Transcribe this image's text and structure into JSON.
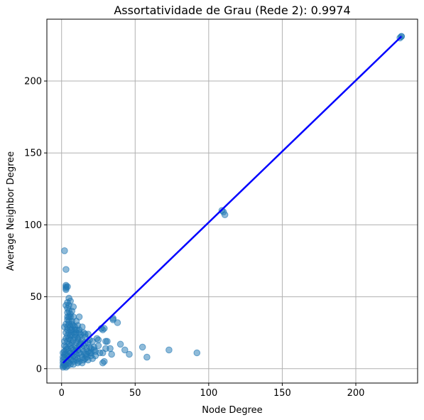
{
  "chart_data": {
    "type": "scatter",
    "title": "Assortatividade de Grau (Rede 2): 0.9974",
    "xlabel": "Node Degree",
    "ylabel": "Average Neighbor Degree",
    "xlim": [
      -10,
      242
    ],
    "ylim": [
      -10,
      243
    ],
    "xticks": [
      0,
      50,
      100,
      150,
      200
    ],
    "yticks": [
      0,
      50,
      100,
      150,
      200
    ],
    "grid": true,
    "colors": {
      "points": "#1f77b4",
      "fit_line": "#0000ff"
    },
    "point_opacity": 0.5,
    "fit_line": {
      "x": [
        1,
        231
      ],
      "y": [
        4,
        231
      ]
    },
    "points": [
      [
        231,
        231
      ],
      [
        231,
        231
      ],
      [
        230,
        230
      ],
      [
        109,
        110
      ],
      [
        110,
        109
      ],
      [
        111,
        107
      ],
      [
        2,
        82
      ],
      [
        3,
        69
      ],
      [
        3,
        58
      ],
      [
        3,
        57
      ],
      [
        4,
        57
      ],
      [
        3,
        56
      ],
      [
        3,
        55
      ],
      [
        5,
        49
      ],
      [
        6,
        47
      ],
      [
        4,
        46
      ],
      [
        3,
        44
      ],
      [
        5,
        44
      ],
      [
        8,
        43
      ],
      [
        4,
        42
      ],
      [
        5,
        40
      ],
      [
        7,
        40
      ],
      [
        4,
        36
      ],
      [
        6,
        36
      ],
      [
        8,
        36
      ],
      [
        12,
        36
      ],
      [
        4,
        34
      ],
      [
        5,
        33
      ],
      [
        7,
        33
      ],
      [
        10,
        33
      ],
      [
        3,
        31
      ],
      [
        5,
        31
      ],
      [
        8,
        30
      ],
      [
        11,
        30
      ],
      [
        2,
        29
      ],
      [
        4,
        29
      ],
      [
        6,
        29
      ],
      [
        9,
        29
      ],
      [
        14,
        29
      ],
      [
        4,
        27
      ],
      [
        6,
        27
      ],
      [
        7,
        27
      ],
      [
        9,
        27
      ],
      [
        12,
        27
      ],
      [
        3,
        25
      ],
      [
        5,
        25
      ],
      [
        8,
        25
      ],
      [
        10,
        25
      ],
      [
        15,
        25
      ],
      [
        16,
        24
      ],
      [
        18,
        24
      ],
      [
        4,
        23
      ],
      [
        6,
        23
      ],
      [
        7,
        23
      ],
      [
        9,
        22
      ],
      [
        12,
        22
      ],
      [
        3,
        21
      ],
      [
        5,
        21
      ],
      [
        6,
        20
      ],
      [
        8,
        20
      ],
      [
        11,
        20
      ],
      [
        14,
        20
      ],
      [
        19,
        20
      ],
      [
        2,
        19
      ],
      [
        4,
        19
      ],
      [
        7,
        18
      ],
      [
        10,
        18
      ],
      [
        13,
        18
      ],
      [
        16,
        18
      ],
      [
        18,
        18
      ],
      [
        21,
        19
      ],
      [
        5,
        17
      ],
      [
        6,
        16
      ],
      [
        9,
        16
      ],
      [
        12,
        16
      ],
      [
        15,
        16
      ],
      [
        3,
        15
      ],
      [
        4,
        14
      ],
      [
        7,
        14
      ],
      [
        8,
        13
      ],
      [
        10,
        14
      ],
      [
        11,
        13
      ],
      [
        14,
        14
      ],
      [
        17,
        14
      ],
      [
        20,
        14
      ],
      [
        22,
        15
      ],
      [
        2,
        12
      ],
      [
        5,
        12
      ],
      [
        6,
        11
      ],
      [
        9,
        12
      ],
      [
        12,
        11
      ],
      [
        15,
        12
      ],
      [
        18,
        12
      ],
      [
        23,
        12
      ],
      [
        3,
        10
      ],
      [
        4,
        9
      ],
      [
        7,
        10
      ],
      [
        8,
        9
      ],
      [
        10,
        10
      ],
      [
        13,
        10
      ],
      [
        16,
        10
      ],
      [
        19,
        11
      ],
      [
        2,
        8
      ],
      [
        5,
        8
      ],
      [
        6,
        7
      ],
      [
        9,
        8
      ],
      [
        11,
        7
      ],
      [
        14,
        8
      ],
      [
        17,
        8
      ],
      [
        20,
        9
      ],
      [
        1,
        6
      ],
      [
        3,
        6
      ],
      [
        4,
        5
      ],
      [
        7,
        6
      ],
      [
        8,
        5
      ],
      [
        10,
        6
      ],
      [
        12,
        5
      ],
      [
        15,
        6
      ],
      [
        18,
        6
      ],
      [
        1,
        4
      ],
      [
        2,
        3
      ],
      [
        3,
        3
      ],
      [
        5,
        4
      ],
      [
        6,
        3
      ],
      [
        8,
        3
      ],
      [
        11,
        4
      ],
      [
        14,
        4
      ],
      [
        1,
        2
      ],
      [
        2,
        2
      ],
      [
        3,
        1
      ],
      [
        1,
        1
      ],
      [
        4,
        2
      ],
      [
        24,
        21
      ],
      [
        25,
        20
      ],
      [
        27,
        28
      ],
      [
        28,
        27
      ],
      [
        29,
        28
      ],
      [
        30,
        19
      ],
      [
        31,
        19
      ],
      [
        33,
        14
      ],
      [
        34,
        10
      ],
      [
        35,
        35
      ],
      [
        35,
        34
      ],
      [
        38,
        32
      ],
      [
        40,
        17
      ],
      [
        43,
        13
      ],
      [
        46,
        10
      ],
      [
        55,
        15
      ],
      [
        58,
        8
      ],
      [
        73,
        13
      ],
      [
        92,
        11
      ],
      [
        25,
        16
      ],
      [
        26,
        11
      ],
      [
        28,
        11
      ],
      [
        29,
        5
      ],
      [
        28,
        4
      ],
      [
        30,
        14
      ],
      [
        22,
        13
      ],
      [
        20,
        11
      ],
      [
        17,
        10
      ],
      [
        16,
        7
      ],
      [
        21,
        7
      ],
      [
        23,
        9
      ],
      [
        19,
        15
      ],
      [
        13,
        24
      ],
      [
        12,
        25
      ],
      [
        16,
        22
      ],
      [
        11,
        21
      ],
      [
        13,
        17
      ],
      [
        9,
        24
      ],
      [
        10,
        27
      ],
      [
        7,
        31
      ],
      [
        6,
        38
      ],
      [
        5,
        36
      ],
      [
        4,
        39
      ],
      [
        2,
        16
      ],
      [
        1,
        11
      ],
      [
        2,
        10
      ],
      [
        1,
        8
      ],
      [
        3,
        13
      ]
    ]
  }
}
